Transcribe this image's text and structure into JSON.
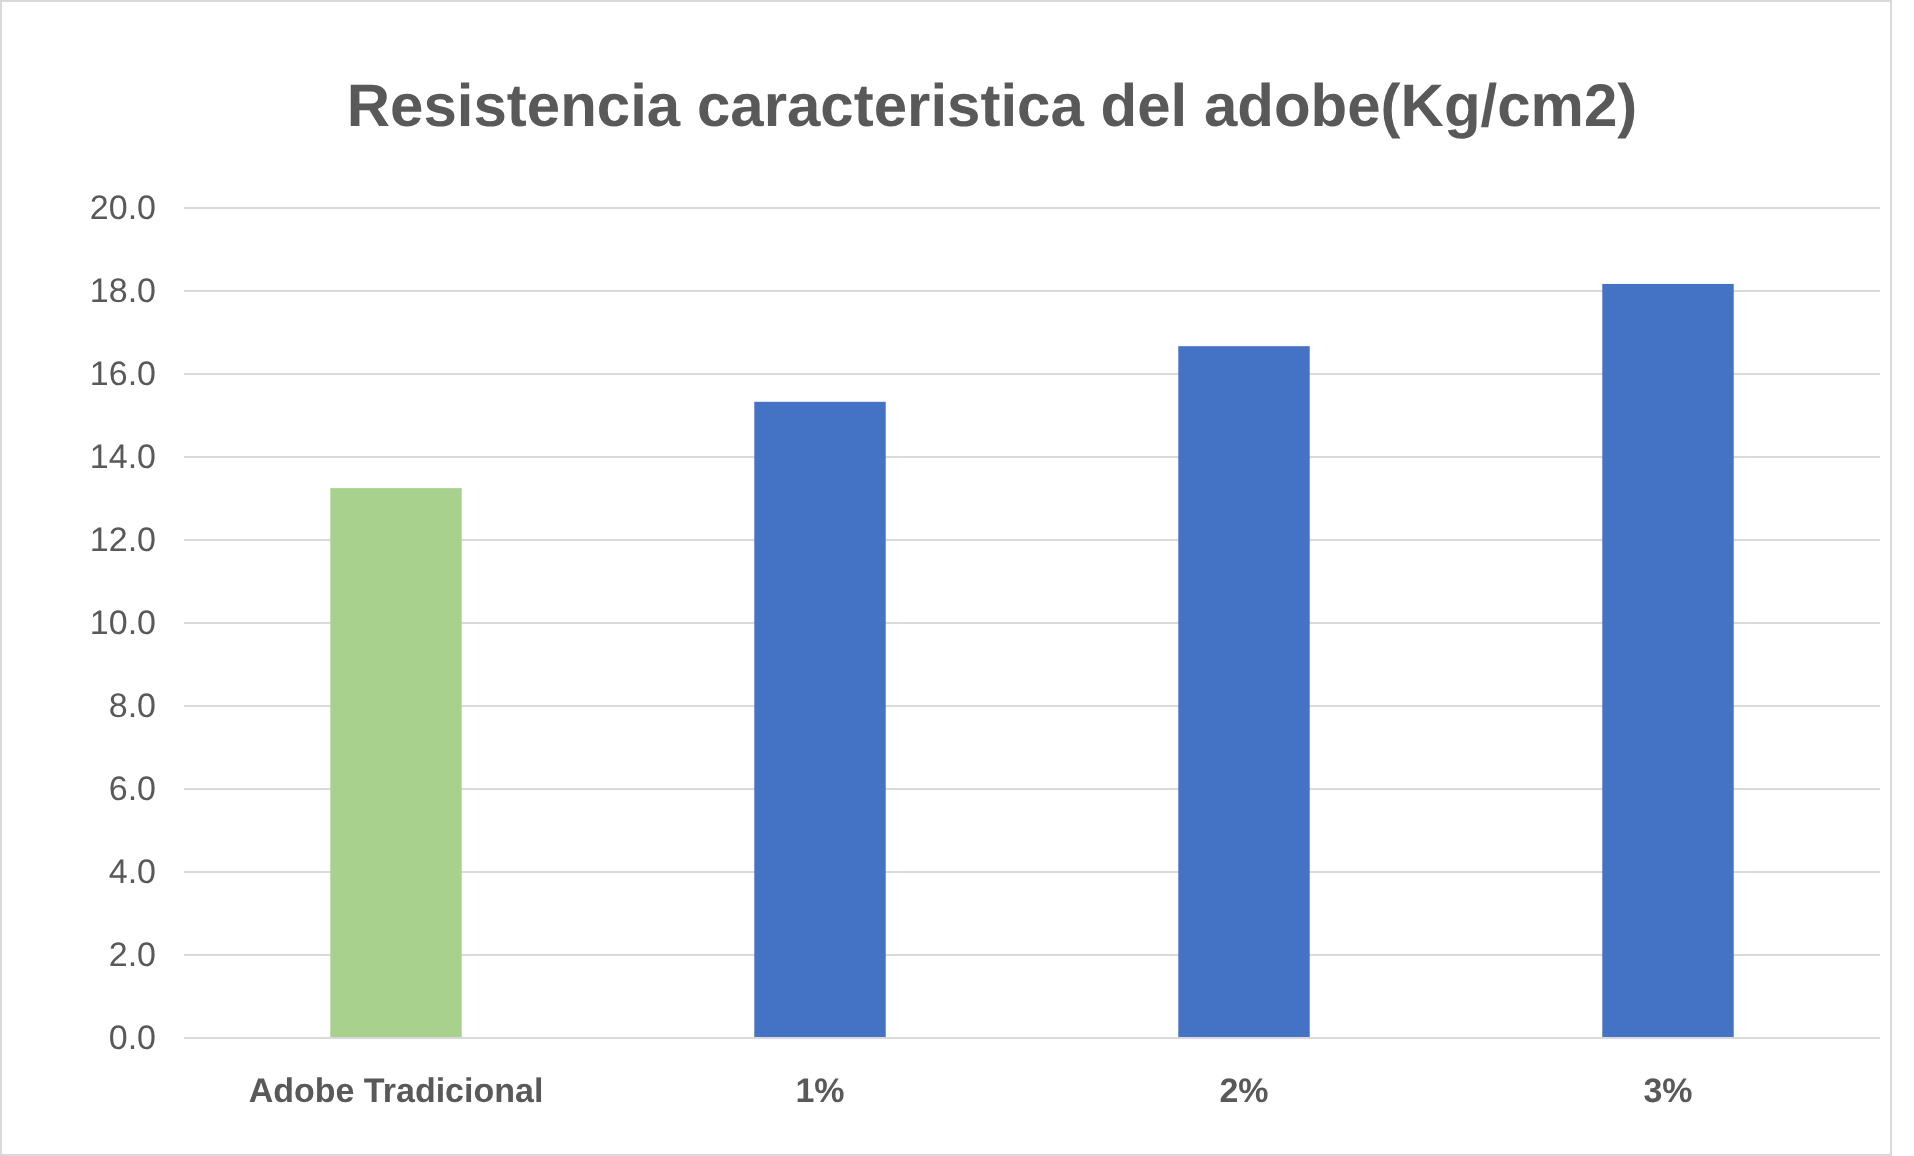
{
  "chart_data": {
    "type": "bar",
    "title": "Resistencia caracteristica del adobe(Kg/cm2)",
    "categories": [
      "Adobe Tradicional",
      "1%",
      "2%",
      "3%"
    ],
    "values": [
      13.25,
      15.33,
      16.67,
      18.17
    ],
    "colors": [
      "#a9d18e",
      "#4472c4",
      "#4472c4",
      "#4472c4"
    ],
    "ylim": [
      0,
      20
    ],
    "yticks": [
      {
        "value": 0,
        "label": "0.0"
      },
      {
        "value": 2,
        "label": "2.0"
      },
      {
        "value": 4,
        "label": "4.0"
      },
      {
        "value": 6,
        "label": "6.0"
      },
      {
        "value": 8,
        "label": "8.0"
      },
      {
        "value": 10,
        "label": "10.0"
      },
      {
        "value": 12,
        "label": "12.0"
      },
      {
        "value": 14,
        "label": "14.0"
      },
      {
        "value": 16,
        "label": "16.0"
      },
      {
        "value": 18,
        "label": "18.0"
      },
      {
        "value": 20,
        "label": "20.0"
      }
    ],
    "grid": "y"
  }
}
